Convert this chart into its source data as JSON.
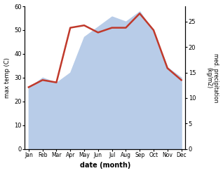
{
  "months": [
    "Jan",
    "Feb",
    "Mar",
    "Apr",
    "May",
    "Jun",
    "Jul",
    "Aug",
    "Sep",
    "Oct",
    "Nov",
    "Dec"
  ],
  "temp": [
    26,
    29,
    28,
    51,
    52,
    49,
    51,
    51,
    57,
    50,
    34,
    29
  ],
  "precip": [
    12,
    14,
    13,
    15,
    22,
    24,
    26,
    25,
    27,
    23,
    16,
    14
  ],
  "temp_color": "#c0392b",
  "precip_fill_color": "#b8cce8",
  "ylabel_left": "max temp (C)",
  "ylabel_right": "med. precipitation\n(kg/m2)",
  "xlabel": "date (month)",
  "ylim_left": [
    0,
    60
  ],
  "ylim_right": [
    0,
    28
  ],
  "yticks_left": [
    0,
    10,
    20,
    30,
    40,
    50,
    60
  ],
  "yticks_right": [
    0,
    5,
    10,
    15,
    20,
    25
  ],
  "line_width": 1.8,
  "figsize": [
    3.18,
    2.47
  ],
  "dpi": 100
}
